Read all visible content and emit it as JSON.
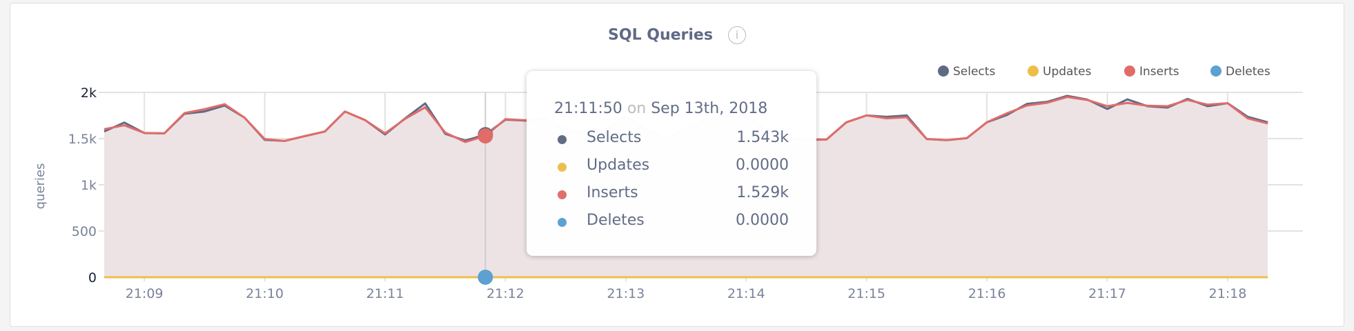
{
  "chart_data": {
    "type": "area",
    "title": "SQL Queries",
    "ylabel": "queries",
    "xlabel": "",
    "ylim": [
      0,
      2000
    ],
    "y_ticks": [
      "0",
      "500",
      "1k",
      "1.5k",
      "2k"
    ],
    "y_tick_values": [
      0,
      500,
      1000,
      1500,
      2000
    ],
    "x_ticks": [
      "21:09",
      "21:10",
      "21:11",
      "21:12",
      "21:13",
      "21:14",
      "21:15",
      "21:16",
      "21:17",
      "21:18"
    ],
    "x_start": "21:08:40",
    "x_end": "21:18:20",
    "x_interval_seconds": 10,
    "grid": true,
    "legend_position": "top-right",
    "series": [
      {
        "name": "Selects",
        "color": "#5f6a85",
        "values": [
          1577,
          1674,
          1560,
          1557,
          1769,
          1793,
          1858,
          1726,
          1487,
          1475,
          1527,
          1577,
          1793,
          1701,
          1545,
          1719,
          1881,
          1552,
          1478,
          1543,
          1705,
          1695,
          1715,
          1600,
          1550,
          1600,
          1740,
          1600,
          1500,
          1600,
          1700,
          1750,
          1740,
          1600,
          1500,
          1490,
          1490,
          1677,
          1751,
          1736,
          1751,
          1495,
          1483,
          1505,
          1677,
          1756,
          1876,
          1898,
          1963,
          1923,
          1821,
          1925,
          1851,
          1836,
          1930,
          1851,
          1883,
          1736,
          1677
        ]
      },
      {
        "name": "Updates",
        "color": "#ecbf4a",
        "values": [
          0,
          0,
          0,
          0,
          0,
          0,
          0,
          0,
          0,
          0,
          0,
          0,
          0,
          0,
          0,
          0,
          0,
          0,
          0,
          0,
          0,
          0,
          0,
          0,
          0,
          0,
          0,
          0,
          0,
          0,
          0,
          0,
          0,
          0,
          0,
          0,
          0,
          0,
          0,
          0,
          0,
          0,
          0,
          0,
          0,
          0,
          0,
          0,
          0,
          0,
          0,
          0,
          0,
          0,
          0,
          0,
          0,
          0,
          0
        ]
      },
      {
        "name": "Inserts",
        "color": "#e06c68",
        "values": [
          1602,
          1644,
          1562,
          1557,
          1776,
          1818,
          1873,
          1726,
          1495,
          1475,
          1527,
          1577,
          1793,
          1701,
          1557,
          1714,
          1838,
          1565,
          1463,
          1529,
          1711,
          1699,
          1719,
          1600,
          1550,
          1600,
          1740,
          1600,
          1500,
          1600,
          1700,
          1750,
          1740,
          1600,
          1500,
          1485,
          1490,
          1677,
          1751,
          1719,
          1731,
          1495,
          1483,
          1505,
          1677,
          1774,
          1858,
          1888,
          1950,
          1918,
          1851,
          1886,
          1856,
          1851,
          1918,
          1868,
          1883,
          1719,
          1664
        ]
      },
      {
        "name": "Deletes",
        "color": "#5ca1d1",
        "values": [
          0,
          0,
          0,
          0,
          0,
          0,
          0,
          0,
          0,
          0,
          0,
          0,
          0,
          0,
          0,
          0,
          0,
          0,
          0,
          0,
          0,
          0,
          0,
          0,
          0,
          0,
          0,
          0,
          0,
          0,
          0,
          0,
          0,
          0,
          0,
          0,
          0,
          0,
          0,
          0,
          0,
          0,
          0,
          0,
          0,
          0,
          0,
          0,
          0,
          0,
          0,
          0,
          0,
          0,
          0,
          0,
          0,
          0,
          0
        ]
      }
    ],
    "hover_index": 19
  },
  "title": "SQL Queries",
  "info_icon": "i",
  "legend": [
    {
      "label": "Selects",
      "color": "#5f6a85"
    },
    {
      "label": "Updates",
      "color": "#ecbf4a"
    },
    {
      "label": "Inserts",
      "color": "#e06c68"
    },
    {
      "label": "Deletes",
      "color": "#5ca1d1"
    }
  ],
  "tooltip": {
    "time": "21:11:50",
    "on": "on",
    "date": "Sep 13th, 2018",
    "rows": [
      {
        "label": "Selects",
        "value": "1.543k",
        "color": "#5f6a85"
      },
      {
        "label": "Updates",
        "value": "0.0000",
        "color": "#ecbf4a"
      },
      {
        "label": "Inserts",
        "value": "1.529k",
        "color": "#e06c68"
      },
      {
        "label": "Deletes",
        "value": "0.0000",
        "color": "#5ca1d1"
      }
    ]
  }
}
